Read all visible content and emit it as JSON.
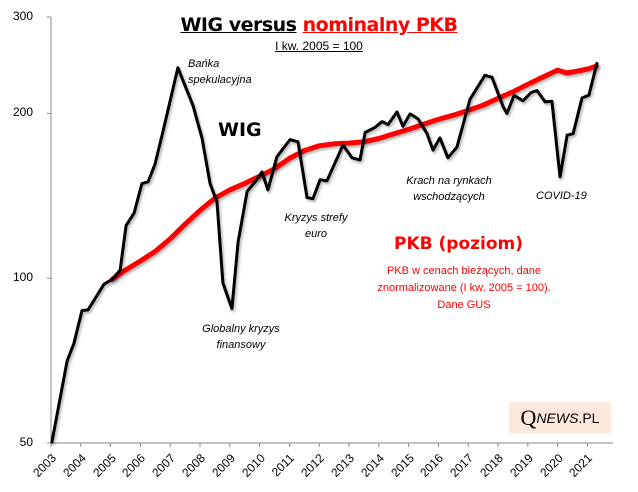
{
  "chart_data": {
    "type": "line",
    "title": "WIG versus nominalny PKB",
    "title_parts": [
      "WIG versus",
      "nominalny PKB"
    ],
    "subtitle": "I kw. 2005 = 100",
    "xlabel": "",
    "ylabel": "",
    "yscale": "log",
    "ylim": [
      50,
      300
    ],
    "xlim": [
      2003,
      2022
    ],
    "y_ticks": [
      50,
      100,
      200,
      300
    ],
    "y_tick_labels": [
      "50",
      "100",
      "200",
      "300"
    ],
    "x_tick_labels": [
      "2003",
      "2004",
      "2005",
      "2006",
      "2007",
      "2008",
      "2009",
      "2010",
      "2011",
      "2012",
      "2013",
      "2014",
      "2015",
      "2016",
      "2017",
      "2018",
      "2019",
      "2020",
      "2021"
    ],
    "x_ticks": [
      2003,
      2004,
      2005,
      2006,
      2007,
      2008,
      2009,
      2010,
      2011,
      2012,
      2013,
      2014,
      2015,
      2016,
      2017,
      2018,
      2019,
      2020,
      2021
    ],
    "grid": false,
    "colors": {
      "wig": "#000000",
      "pkb": "#ff0000",
      "axis": "#888888",
      "logo_bg": "#fce9dc"
    },
    "series": [
      {
        "name": "WIG",
        "x": [
          2003.03,
          2003.54,
          2003.77,
          2004.04,
          2004.24,
          2004.78,
          2005.05,
          2005.32,
          2005.52,
          2005.79,
          2005.92,
          2006.05,
          2006.26,
          2006.49,
          2006.76,
          2007.26,
          2007.77,
          2008.07,
          2008.34,
          2008.57,
          2008.77,
          2009.07,
          2009.28,
          2009.58,
          2009.85,
          2010.08,
          2010.28,
          2010.58,
          2011.02,
          2011.29,
          2011.59,
          2011.79,
          2012.03,
          2012.26,
          2012.8,
          2013.1,
          2013.37,
          2013.54,
          2013.87,
          2014.11,
          2014.31,
          2014.61,
          2014.81,
          2015.05,
          2015.32,
          2015.62,
          2015.82,
          2016.05,
          2016.32,
          2016.62,
          2017.06,
          2017.56,
          2017.8,
          2018.17,
          2018.3,
          2018.54,
          2018.84,
          2019.11,
          2019.31,
          2019.58,
          2019.81,
          2020.08,
          2020.32,
          2020.52,
          2020.82,
          2021.05,
          2021.32
        ],
        "values": [
          50.2,
          70.6,
          76.0,
          87.3,
          87.5,
          97.5,
          99.5,
          103.4,
          124.8,
          131.5,
          140.0,
          148.8,
          150.0,
          161.5,
          185.5,
          242.4,
          206.5,
          180.0,
          148.8,
          137.8,
          98.0,
          88.0,
          116.5,
          144.0,
          150.0,
          156.3,
          145.0,
          166.6,
          179.1,
          177.5,
          140.4,
          139.7,
          151.3,
          150.6,
          175.0,
          165.9,
          164.5,
          184.6,
          188.6,
          193.2,
          190.8,
          201.3,
          189.5,
          199.6,
          195.4,
          183.6,
          171.4,
          180.4,
          165.9,
          173.5,
          212.2,
          234.8,
          232.9,
          205.7,
          200.0,
          215.7,
          210.9,
          218.4,
          220.2,
          209.9,
          210.5,
          153.1,
          182.5,
          183.6,
          213.4,
          216.0,
          246.8
        ]
      },
      {
        "name": "PKB (poziom)",
        "x": [
          2005.05,
          2005.5,
          2006.0,
          2006.5,
          2007.0,
          2007.5,
          2008.0,
          2008.5,
          2009.0,
          2009.5,
          2010.0,
          2010.5,
          2011.0,
          2011.5,
          2012.0,
          2012.5,
          2013.0,
          2013.5,
          2014.0,
          2014.5,
          2015.0,
          2015.5,
          2016.0,
          2016.5,
          2017.0,
          2017.5,
          2018.0,
          2018.5,
          2019.0,
          2019.5,
          2020.0,
          2020.3,
          2020.6,
          2021.0,
          2021.3
        ],
        "values": [
          99.5,
          103.5,
          107.5,
          112.0,
          118.0,
          125.5,
          133.0,
          140.0,
          145.0,
          149.0,
          153.5,
          158.5,
          165.5,
          171.0,
          174.5,
          176.0,
          176.5,
          177.5,
          180.0,
          183.5,
          187.0,
          191.0,
          195.0,
          198.5,
          202.5,
          207.0,
          213.0,
          219.0,
          226.0,
          233.0,
          240.0,
          237.0,
          238.5,
          241.0,
          244.0
        ]
      }
    ],
    "annotations": {
      "banka": [
        "Bańka",
        "spekulacyjna"
      ],
      "wig_label": "WIG",
      "globalny": [
        "Globalny kryzys",
        "finansowy"
      ],
      "kryzys_euro": [
        "Kryzys strefy",
        "euro"
      ],
      "krach": [
        "Krach na rynkach",
        "wschodzących"
      ],
      "covid": "COVID-19",
      "pkb_label": "PKB (poziom)",
      "pkb_desc": [
        "PKB w cenach bieżących, dane",
        "znormalizowane (I kw. 2005 = 100).",
        "Dane GUS"
      ]
    },
    "logo": {
      "q": "Q",
      "news": "NEWS",
      "pl": ".PL"
    }
  }
}
